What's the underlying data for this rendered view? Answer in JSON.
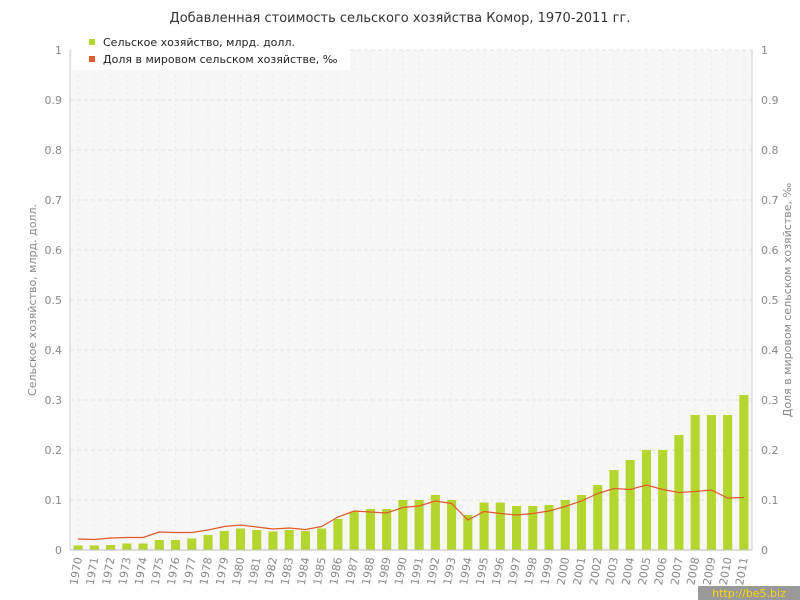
{
  "chart_data": {
    "type": "bar",
    "title": "Добавленная стоимость сельского хозяйства Комор, 1970-2011 гг.",
    "ylabel": "Сельское хозяйство, млрд. долл.",
    "y2label": "Доля в мировом сельском хозяйстве, ‰",
    "ylim": [
      0,
      1
    ],
    "y2lim": [
      0,
      1
    ],
    "yticks": [
      "0",
      "0.1",
      "0.2",
      "0.3",
      "0.4",
      "0.5",
      "0.6",
      "0.7",
      "0.8",
      "0.9",
      "1"
    ],
    "grid": true,
    "legend_position": "top-left",
    "categories": [
      "1970",
      "1971",
      "1972",
      "1973",
      "1974",
      "1975",
      "1976",
      "1977",
      "1978",
      "1979",
      "1980",
      "1981",
      "1982",
      "1983",
      "1984",
      "1985",
      "1986",
      "1987",
      "1988",
      "1989",
      "1990",
      "1991",
      "1992",
      "1993",
      "1994",
      "1995",
      "1996",
      "1997",
      "1998",
      "1999",
      "2000",
      "2001",
      "2002",
      "2003",
      "2004",
      "2005",
      "2006",
      "2007",
      "2008",
      "2009",
      "2010",
      "2011"
    ],
    "series": [
      {
        "name": "Сельское хозяйство, млрд. долл.",
        "type": "bar",
        "axis": "left",
        "color": "#b5d62f",
        "values": [
          0.009,
          0.009,
          0.01,
          0.013,
          0.013,
          0.02,
          0.02,
          0.023,
          0.03,
          0.038,
          0.043,
          0.04,
          0.037,
          0.04,
          0.038,
          0.043,
          0.062,
          0.077,
          0.082,
          0.082,
          0.1,
          0.1,
          0.11,
          0.1,
          0.07,
          0.095,
          0.095,
          0.088,
          0.088,
          0.09,
          0.1,
          0.11,
          0.13,
          0.16,
          0.18,
          0.2,
          0.2,
          0.23,
          0.27,
          0.27,
          0.27,
          0.31
        ]
      },
      {
        "name": "Доля в мировом сельском хозяйстве, ‰",
        "type": "line",
        "axis": "right",
        "color": "#e05a2a",
        "values": [
          0.022,
          0.021,
          0.024,
          0.025,
          0.025,
          0.036,
          0.035,
          0.035,
          0.04,
          0.047,
          0.05,
          0.046,
          0.042,
          0.044,
          0.041,
          0.047,
          0.066,
          0.078,
          0.076,
          0.074,
          0.085,
          0.088,
          0.098,
          0.093,
          0.06,
          0.077,
          0.073,
          0.07,
          0.073,
          0.078,
          0.087,
          0.098,
          0.113,
          0.123,
          0.121,
          0.13,
          0.121,
          0.115,
          0.117,
          0.12,
          0.104,
          0.105
        ]
      }
    ]
  },
  "watermark": "http://be5.biz"
}
